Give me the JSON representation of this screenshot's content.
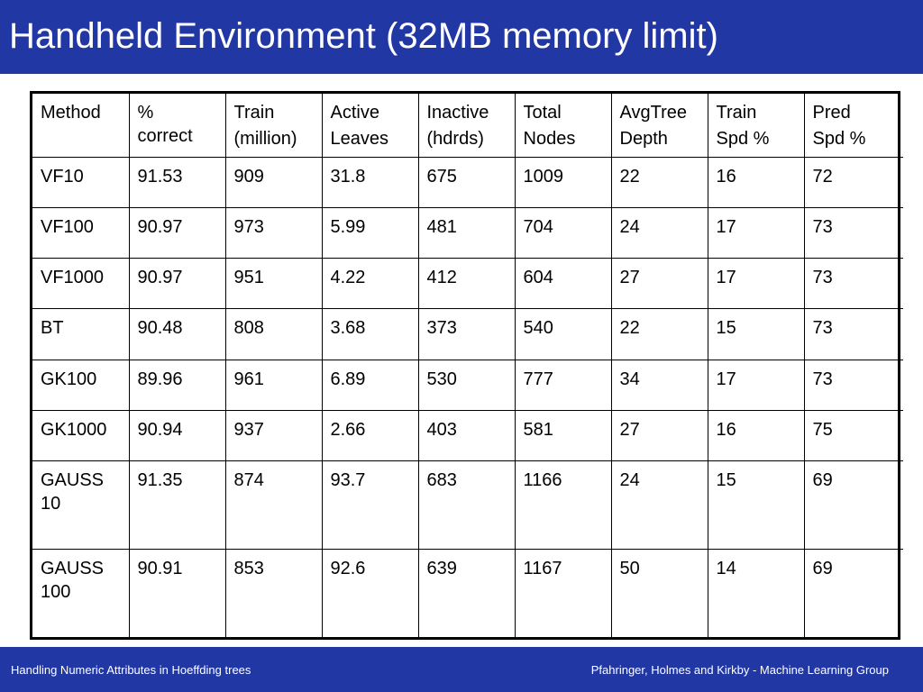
{
  "slide": {
    "title": "Handheld Environment (32MB memory limit)"
  },
  "table": {
    "headers": [
      [
        "Method"
      ],
      [
        "%",
        "correct"
      ],
      [
        "Train",
        "(million)"
      ],
      [
        "Active",
        "Leaves"
      ],
      [
        "Inactive",
        "(hdrds)"
      ],
      [
        "Total",
        "Nodes"
      ],
      [
        "AvgTree",
        "Depth"
      ],
      [
        "Train",
        "Spd %"
      ],
      [
        "Pred",
        "Spd %"
      ]
    ],
    "rows": [
      [
        "VF10",
        "91.53",
        "909",
        "31.8",
        "675",
        "1009",
        "22",
        "16",
        "72"
      ],
      [
        "VF100",
        "90.97",
        "973",
        "5.99",
        "481",
        "704",
        "24",
        "17",
        "73"
      ],
      [
        "VF1000",
        "90.97",
        "951",
        "4.22",
        "412",
        "604",
        "27",
        "17",
        "73"
      ],
      [
        "BT",
        "90.48",
        "808",
        "3.68",
        "373",
        "540",
        "22",
        "15",
        "73"
      ],
      [
        "GK100",
        "89.96",
        "961",
        "6.89",
        "530",
        "777",
        "34",
        "17",
        "73"
      ],
      [
        "GK1000",
        "90.94",
        "937",
        "2.66",
        "403",
        "581",
        "27",
        "16",
        "75"
      ],
      [
        "GAUSS\n10",
        "91.35",
        "874",
        "93.7",
        "683",
        "1166",
        "24",
        "15",
        "69"
      ],
      [
        "GAUSS\n100",
        "90.91",
        "853",
        "92.6",
        "639",
        "1167",
        "50",
        "14",
        "69"
      ]
    ]
  },
  "footer": {
    "left": "Handling Numeric Attributes in Hoeffding trees",
    "right": "Pfahringer, Holmes and Kirkby - Machine Learning Group"
  },
  "colors": {
    "bar": "#2137a4",
    "bar_text": "#ffffff",
    "table_border": "#000000"
  }
}
